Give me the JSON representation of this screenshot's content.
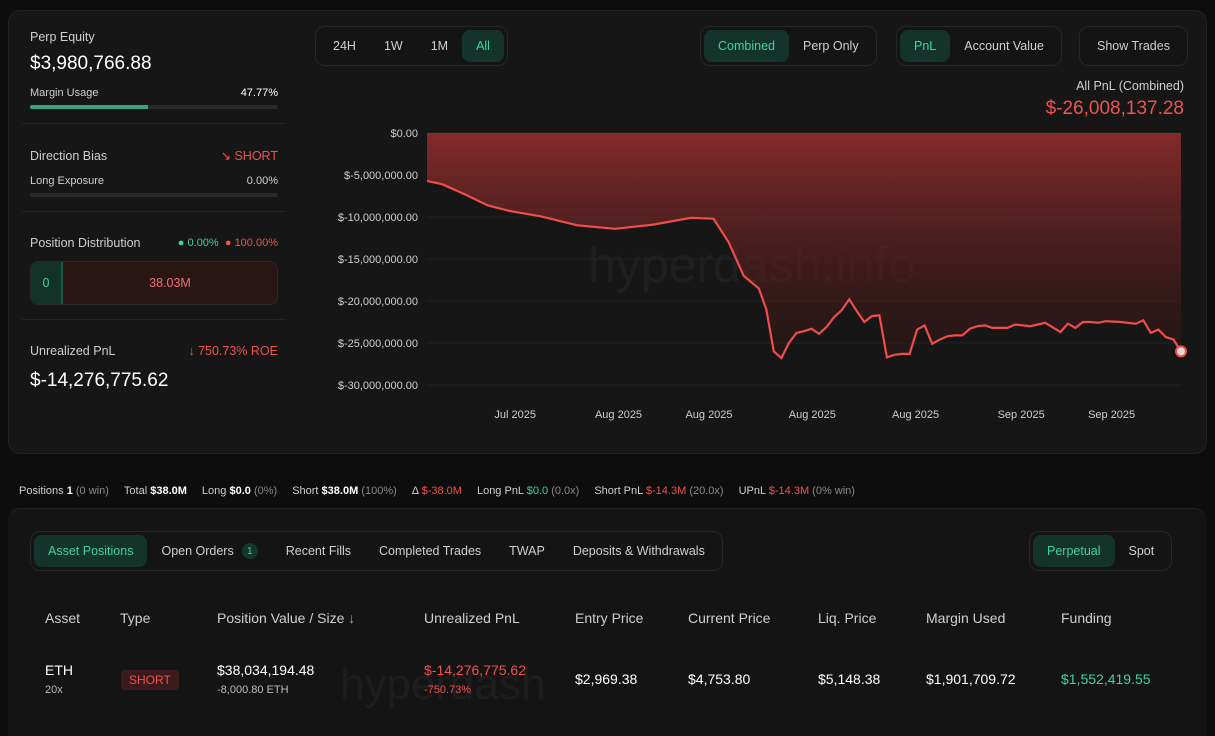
{
  "equity": {
    "label": "Perp Equity",
    "value": "$3,980,766.88",
    "margin_label": "Margin Usage",
    "margin_value": "47.77%",
    "margin_pct": 47.77
  },
  "direction": {
    "label": "Direction Bias",
    "value": "SHORT",
    "exposure_label": "Long Exposure",
    "exposure_value": "0.00%",
    "exposure_pct": 0
  },
  "distribution": {
    "label": "Position Distribution",
    "long_pct": "0.00%",
    "short_pct": "100.00%",
    "long_value": "0",
    "short_value": "38.03M"
  },
  "unrealized": {
    "label": "Unrealized PnL",
    "roe": "750.73% ROE",
    "value": "$-14,276,775.62"
  },
  "range_tabs": [
    {
      "label": "24H"
    },
    {
      "label": "1W"
    },
    {
      "label": "1M"
    },
    {
      "label": "All"
    }
  ],
  "mode_tabs": [
    {
      "label": "Combined"
    },
    {
      "label": "Perp Only"
    }
  ],
  "metric_tabs": [
    {
      "label": "PnL"
    },
    {
      "label": "Account Value"
    }
  ],
  "show_trades": "Show Trades",
  "chart_header": {
    "title": "All PnL (Combined)",
    "value": "$-26,008,137.28"
  },
  "watermark": "hyperdash.info",
  "chart_data": {
    "type": "area",
    "title": "All PnL (Combined)",
    "y_ticks": [
      "$0.00",
      "$-5,000,000.00",
      "$-10,000,000.00",
      "$-15,000,000.00",
      "$-20,000,000.00",
      "$-25,000,000.00",
      "$-30,000,000.00"
    ],
    "x_ticks": [
      "Jul 2025",
      "Aug 2025",
      "Aug 2025",
      "Aug 2025",
      "Aug 2025",
      "Sep 2025",
      "Sep 2025"
    ],
    "ylim": [
      -30000000,
      0
    ],
    "x_ticks_pos": [
      0.117,
      0.254,
      0.374,
      0.511,
      0.648,
      0.788,
      0.908
    ],
    "x": [
      0,
      0.02,
      0.05,
      0.08,
      0.11,
      0.15,
      0.2,
      0.25,
      0.3,
      0.35,
      0.38,
      0.4,
      0.42,
      0.44,
      0.45,
      0.46,
      0.47,
      0.48,
      0.49,
      0.5,
      0.51,
      0.52,
      0.53,
      0.54,
      0.55,
      0.56,
      0.57,
      0.58,
      0.59,
      0.6,
      0.61,
      0.62,
      0.63,
      0.64,
      0.65,
      0.66,
      0.67,
      0.68,
      0.69,
      0.7,
      0.71,
      0.72,
      0.73,
      0.74,
      0.75,
      0.76,
      0.77,
      0.78,
      0.8,
      0.82,
      0.84,
      0.85,
      0.86,
      0.87,
      0.88,
      0.89,
      0.9,
      0.92,
      0.94,
      0.95,
      0.96,
      0.97,
      0.98,
      0.99,
      1
    ],
    "values": [
      -5700000,
      -6100000,
      -7300000,
      -8600000,
      -9300000,
      -9900000,
      -11000000,
      -11400000,
      -10900000,
      -10100000,
      -10200000,
      -13000000,
      -17000000,
      -18500000,
      -21000000,
      -26000000,
      -26800000,
      -25000000,
      -23800000,
      -23600000,
      -23300000,
      -23900000,
      -23100000,
      -21900000,
      -21100000,
      -19800000,
      -21200000,
      -22500000,
      -21800000,
      -21700000,
      -26700000,
      -26400000,
      -26300000,
      -26300000,
      -23400000,
      -22900000,
      -25100000,
      -24600000,
      -24200000,
      -24100000,
      -24100000,
      -23300000,
      -23000000,
      -22900000,
      -23200000,
      -23200000,
      -23200000,
      -22800000,
      -23000000,
      -22600000,
      -23700000,
      -22700000,
      -23200000,
      -22500000,
      -22500000,
      -22600000,
      -22400000,
      -22500000,
      -22700000,
      -22300000,
      -23800000,
      -23400000,
      -24300000,
      -24600000,
      -26000000
    ]
  },
  "stats": {
    "positions_label": "Positions",
    "positions_value": "1",
    "positions_note": "(0 win)",
    "total_label": "Total",
    "total_value": "$38.0M",
    "long_label": "Long",
    "long_value": "$0.0",
    "long_note": "(0%)",
    "short_label": "Short",
    "short_value": "$38.0M",
    "short_note": "(100%)",
    "delta_label": "Δ",
    "delta_value": "$-38.0M",
    "longpnl_label": "Long PnL",
    "longpnl_value": "$0.0",
    "longpnl_note": "(0.0x)",
    "shortpnl_label": "Short PnL",
    "shortpnl_value": "$-14.3M",
    "shortpnl_note": "(20.0x)",
    "upnl_label": "UPnL",
    "upnl_value": "$-14.3M",
    "upnl_note": "(0% win)"
  },
  "bottom_tabs": [
    {
      "label": "Asset Positions"
    },
    {
      "label": "Open Orders",
      "count": "1"
    },
    {
      "label": "Recent Fills"
    },
    {
      "label": "Completed Trades"
    },
    {
      "label": "TWAP"
    },
    {
      "label": "Deposits & Withdrawals"
    }
  ],
  "market_tabs": [
    {
      "label": "Perpetual"
    },
    {
      "label": "Spot"
    }
  ],
  "table": {
    "headers": [
      "Asset",
      "Type",
      "Position Value / Size",
      "Unrealized PnL",
      "Entry Price",
      "Current Price",
      "Liq. Price",
      "Margin Used",
      "Funding"
    ],
    "sort_icon": "↓",
    "row": {
      "asset": "ETH",
      "leverage": "20x",
      "type": "SHORT",
      "position_value": "$38,034,194.48",
      "size": "-8,000.80 ETH",
      "upnl": "$-14,276,775.62",
      "upnl_pct": "-750.73%",
      "entry": "$2,969.38",
      "current": "$4,753.80",
      "liq": "$5,148.38",
      "margin": "$1,901,709.72",
      "funding": "$1,552,419.55"
    }
  }
}
